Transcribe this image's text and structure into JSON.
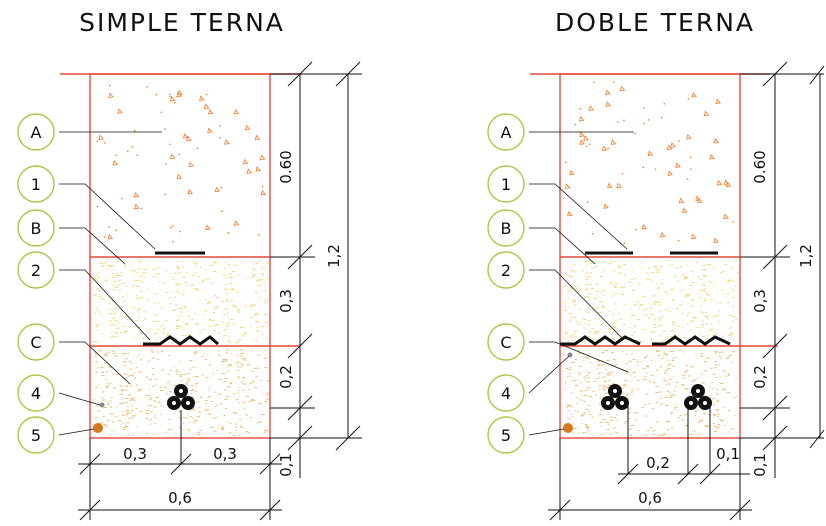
{
  "titles": {
    "simple": "SIMPLE TERNA",
    "doble": "DOBLE TERNA"
  },
  "labels": [
    "A",
    "1",
    "B",
    "2",
    "C",
    "4",
    "5"
  ],
  "dimensions": {
    "simple": {
      "layer_a": "0.60",
      "layer_b": "0,3",
      "layer_c": "0,2",
      "below": "0,1",
      "total_depth": "1,2",
      "half_left": "0,3",
      "half_right": "0,3",
      "width": "0,6"
    },
    "doble": {
      "layer_a": "0.60",
      "layer_b": "0,3",
      "layer_c": "0,2",
      "below": "0,1",
      "total_depth": "1,2",
      "spacing": "0,2",
      "offset": "0,1",
      "width": "0,6"
    }
  },
  "colors": {
    "trench_outline": "#e34a3c",
    "label_circle": "#b7c24a",
    "layer_a_mark": "#f07a2a",
    "layer_b_fill": "#f7cf6e",
    "layer_c_fill": "#efb46a",
    "item_5": "#d9781a",
    "item_4": "#888888",
    "line": "#111111"
  },
  "icons": {
    "cable": "three-cable-trefoil-icon"
  }
}
